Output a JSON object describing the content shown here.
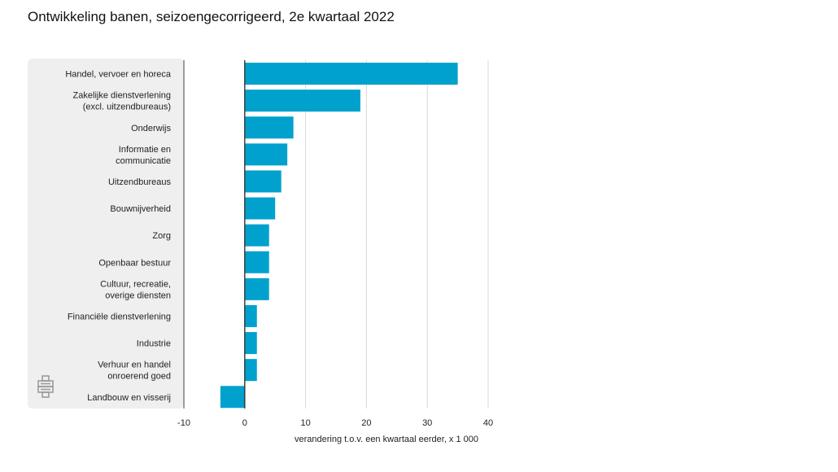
{
  "title": "Ontwikkeling banen, seizoengecorrigeerd, 2e kwartaal 2022",
  "logo_icon": "cbs-logo-icon",
  "chart_data": {
    "type": "bar",
    "orientation": "horizontal",
    "title": "Ontwikkeling banen, seizoengecorrigeerd, 2e kwartaal 2022",
    "xlabel": "verandering t.o.v. een kwartaal eerder, x 1 000",
    "ylabel": "",
    "xlim": [
      -10,
      40
    ],
    "xticks": [
      -10,
      0,
      10,
      20,
      30,
      40
    ],
    "grid": true,
    "bar_color": "#00a1cd",
    "categories": [
      [
        "Handel, vervoer en horeca"
      ],
      [
        "Zakelijke dienstverlening",
        "(excl. uitzendbureaus)"
      ],
      [
        "Onderwijs"
      ],
      [
        "Informatie en",
        "communicatie"
      ],
      [
        "Uitzendbureaus"
      ],
      [
        "Bouwnijverheid"
      ],
      [
        "Zorg"
      ],
      [
        "Openbaar bestuur"
      ],
      [
        "Cultuur, recreatie,",
        "overige diensten"
      ],
      [
        "Financiële dienstverlening"
      ],
      [
        "Industrie"
      ],
      [
        "Verhuur en handel",
        "onroerend goed"
      ],
      [
        "Landbouw en visserij"
      ]
    ],
    "values": [
      35,
      19,
      8,
      7,
      6,
      5,
      4,
      4,
      4,
      2,
      2,
      2,
      -4
    ]
  }
}
